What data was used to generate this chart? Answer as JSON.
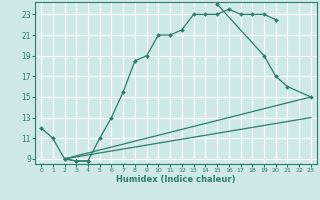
{
  "background_color": "#cfe9e9",
  "grid_color": "#ffffff",
  "line_color": "#2d7d6e",
  "xlabel": "Humidex (Indice chaleur)",
  "ylim": [
    8.5,
    24.2
  ],
  "xlim": [
    -0.5,
    23.5
  ],
  "yticks": [
    9,
    11,
    13,
    15,
    17,
    19,
    21,
    23
  ],
  "xticks": [
    0,
    1,
    2,
    3,
    4,
    5,
    6,
    7,
    8,
    9,
    10,
    11,
    12,
    13,
    14,
    15,
    16,
    17,
    18,
    19,
    20,
    21,
    22,
    23
  ],
  "series1_x": [
    0,
    1,
    2,
    3,
    4
  ],
  "series1_y": [
    12,
    11,
    9,
    8.8,
    8.8
  ],
  "series2_x": [
    2,
    3,
    4,
    5,
    6,
    7,
    8,
    9,
    10,
    11,
    12,
    13,
    14,
    15,
    16,
    17,
    18,
    19,
    20
  ],
  "series2_y": [
    9,
    8.8,
    8.8,
    11,
    13,
    15.5,
    18.5,
    19,
    21,
    21,
    21.5,
    23,
    23,
    23,
    23.5,
    23,
    23,
    23,
    22.5
  ],
  "series3_x": [
    15,
    19,
    20,
    21,
    23
  ],
  "series3_y": [
    24,
    19,
    17,
    16,
    15
  ],
  "line1_x": [
    2,
    23
  ],
  "line1_y": [
    9,
    15
  ],
  "line2_x": [
    2,
    23
  ],
  "line2_y": [
    9,
    13
  ]
}
